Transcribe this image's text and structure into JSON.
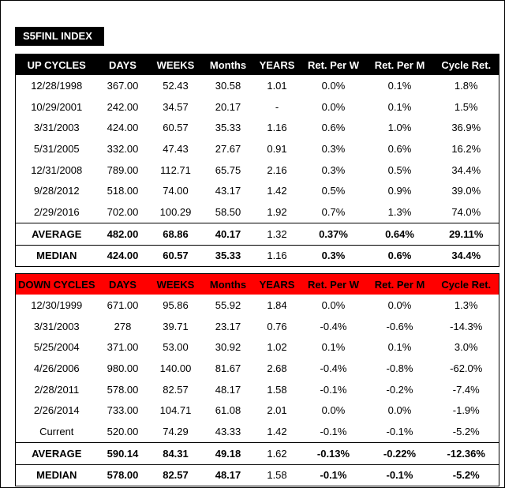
{
  "title": "S5FINL INDEX",
  "headers": {
    "up": [
      "UP CYCLES",
      "DAYS",
      "WEEKS",
      "Months",
      "YEARS",
      "Ret. Per W",
      "Ret. Per M",
      "Cycle Ret."
    ],
    "down": [
      "DOWN CYCLES",
      "DAYS",
      "WEEKS",
      "Months",
      "YEARS",
      "Ret. Per W",
      "Ret. Per M",
      "Cycle Ret."
    ]
  },
  "colors": {
    "up_header": "#000000",
    "down_header": "#ff0000"
  },
  "up_rows": [
    [
      "12/28/1998",
      "367.00",
      "52.43",
      "30.58",
      "1.01",
      "0.0%",
      "0.1%",
      "1.8%"
    ],
    [
      "10/29/2001",
      "242.00",
      "34.57",
      "20.17",
      "-",
      "0.0%",
      "0.1%",
      "1.5%"
    ],
    [
      "3/31/2003",
      "424.00",
      "60.57",
      "35.33",
      "1.16",
      "0.6%",
      "1.0%",
      "36.9%"
    ],
    [
      "5/31/2005",
      "332.00",
      "47.43",
      "27.67",
      "0.91",
      "0.3%",
      "0.6%",
      "16.2%"
    ],
    [
      "12/31/2008",
      "789.00",
      "112.71",
      "65.75",
      "2.16",
      "0.3%",
      "0.5%",
      "34.4%"
    ],
    [
      "9/28/2012",
      "518.00",
      "74.00",
      "43.17",
      "1.42",
      "0.5%",
      "0.9%",
      "39.0%"
    ],
    [
      "2/29/2016",
      "702.00",
      "100.29",
      "58.50",
      "1.92",
      "0.7%",
      "1.3%",
      "74.0%"
    ]
  ],
  "up_summary": [
    [
      "AVERAGE",
      "482.00",
      "68.86",
      "40.17",
      "1.32",
      "0.37%",
      "0.64%",
      "29.11%"
    ],
    [
      "MEDIAN",
      "424.00",
      "60.57",
      "35.33",
      "1.16",
      "0.3%",
      "0.6%",
      "34.4%"
    ]
  ],
  "down_rows": [
    [
      "12/30/1999",
      "671.00",
      "95.86",
      "55.92",
      "1.84",
      "0.0%",
      "0.0%",
      "1.3%"
    ],
    [
      "3/31/2003",
      "278",
      "39.71",
      "23.17",
      "0.76",
      "-0.4%",
      "-0.6%",
      "-14.3%"
    ],
    [
      "5/25/2004",
      "371.00",
      "53.00",
      "30.92",
      "1.02",
      "0.1%",
      "0.1%",
      "3.0%"
    ],
    [
      "4/26/2006",
      "980.00",
      "140.00",
      "81.67",
      "2.68",
      "-0.4%",
      "-0.8%",
      "-62.0%"
    ],
    [
      "2/28/2011",
      "578.00",
      "82.57",
      "48.17",
      "1.58",
      "-0.1%",
      "-0.2%",
      "-7.4%"
    ],
    [
      "2/26/2014",
      "733.00",
      "104.71",
      "61.08",
      "2.01",
      "0.0%",
      "0.0%",
      "-1.9%"
    ],
    [
      "Current",
      "520.00",
      "74.29",
      "43.33",
      "1.42",
      "-0.1%",
      "-0.1%",
      "-5.2%"
    ]
  ],
  "down_summary": [
    [
      "AVERAGE",
      "590.14",
      "84.31",
      "49.18",
      "1.62",
      "-0.13%",
      "-0.22%",
      "-12.36%"
    ],
    [
      "MEDIAN",
      "578.00",
      "82.57",
      "48.17",
      "1.58",
      "-0.1%",
      "-0.1%",
      "-5.2%"
    ]
  ]
}
